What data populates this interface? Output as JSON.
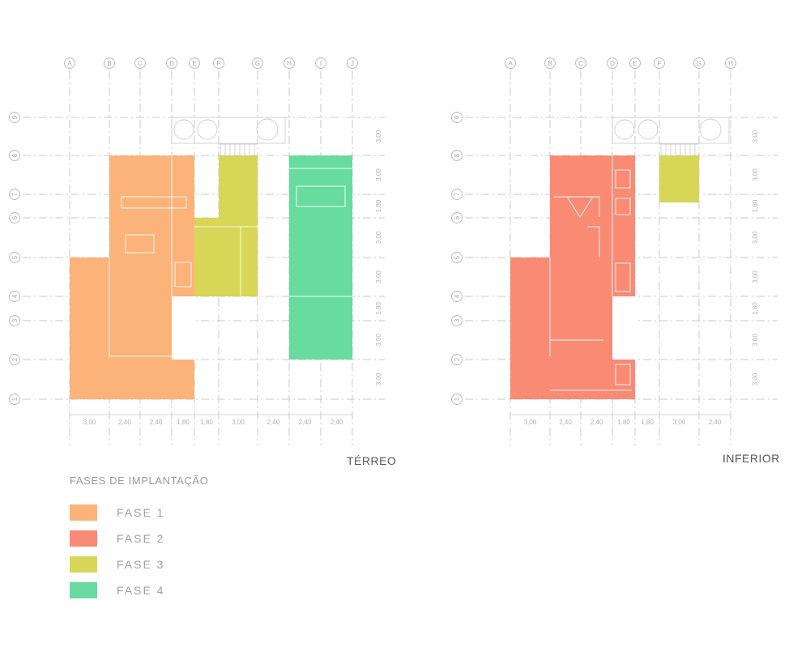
{
  "colors": {
    "fase1": "#fbb37a",
    "fase2": "#f98a74",
    "fase3": "#d7d656",
    "fase4": "#67dc9e"
  },
  "plans": [
    {
      "title": "TÉRREO",
      "col_labels": [
        "A",
        "B",
        "C",
        "D",
        "E",
        "F",
        "G",
        "H",
        "I",
        "J"
      ],
      "row_labels": [
        "1",
        "2",
        "3",
        "4",
        "5",
        "6",
        "7",
        "8",
        "9"
      ],
      "col_dims": [
        "3,00",
        "2,40",
        "2,40",
        "1,80",
        "1,80",
        "3,00",
        "2,40",
        "2,40",
        "2,40"
      ],
      "row_dims": [
        "3,00",
        "3,00",
        "1,80",
        "3,00",
        "3,00",
        "1,80",
        "3,00",
        "3,00"
      ]
    },
    {
      "title": "INFERIOR",
      "col_labels": [
        "A",
        "B",
        "C",
        "D",
        "E",
        "F",
        "G",
        "H"
      ],
      "row_labels": [
        "1",
        "2",
        "3",
        "4",
        "5",
        "6",
        "7",
        "8",
        "9"
      ],
      "col_dims": [
        "3,00",
        "2,40",
        "2,40",
        "1,80",
        "1,80",
        "3,00",
        "2,40"
      ],
      "row_dims": [
        "3,00",
        "3,00",
        "1,80",
        "3,00",
        "3,00",
        "1,80",
        "3,00",
        "3,00"
      ]
    }
  ],
  "legend": {
    "title": "FASES DE IMPLANTAÇÃO",
    "items": [
      {
        "label": "FASE  1",
        "color": "#fbb37a"
      },
      {
        "label": "FASE  2",
        "color": "#f98a74"
      },
      {
        "label": "FASE  3",
        "color": "#d7d656"
      },
      {
        "label": "FASE  4",
        "color": "#67dc9e"
      }
    ]
  }
}
